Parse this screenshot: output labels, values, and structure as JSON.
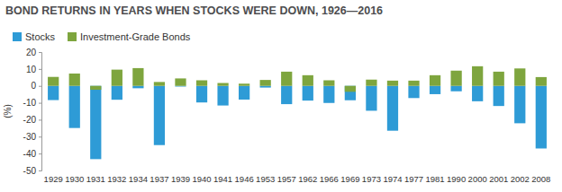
{
  "chart_data": {
    "type": "bar",
    "title": "BOND RETURNS IN YEARS WHEN STOCKS WERE DOWN, 1926—2016",
    "y_label": "(%)",
    "categories": [
      "1929",
      "1930",
      "1931",
      "1932",
      "1934",
      "1937",
      "1939",
      "1940",
      "1941",
      "1946",
      "1953",
      "1957",
      "1962",
      "1966",
      "1969",
      "1973",
      "1974",
      "1977",
      "1981",
      "1990",
      "2000",
      "2001",
      "2002",
      "2008"
    ],
    "series": [
      {
        "name": "Stocks",
        "color": "#2e9bd6",
        "values": [
          -8.4,
          -24.9,
          -43.3,
          -8.2,
          -1.4,
          -35.0,
          -0.4,
          -9.8,
          -11.6,
          -8.1,
          -1.0,
          -10.8,
          -8.7,
          -10.1,
          -8.5,
          -14.7,
          -26.5,
          -7.2,
          -4.9,
          -3.2,
          -9.1,
          -11.9,
          -22.1,
          -37.0
        ]
      },
      {
        "name": "Investment-Grade Bonds",
        "color": "#7ea53e",
        "values": [
          5.3,
          7.3,
          -2.3,
          9.6,
          10.5,
          2.3,
          4.4,
          3.3,
          1.7,
          1.3,
          3.5,
          8.4,
          6.3,
          3.3,
          -3.5,
          3.7,
          3.1,
          3.1,
          6.3,
          9.0,
          11.6,
          8.4,
          10.3,
          5.2
        ]
      }
    ],
    "ylim": [
      -50,
      20
    ],
    "yticks": [
      -50,
      -40,
      -30,
      -20,
      -10,
      0,
      10,
      20
    ],
    "grid": false,
    "legend": "top-left"
  }
}
